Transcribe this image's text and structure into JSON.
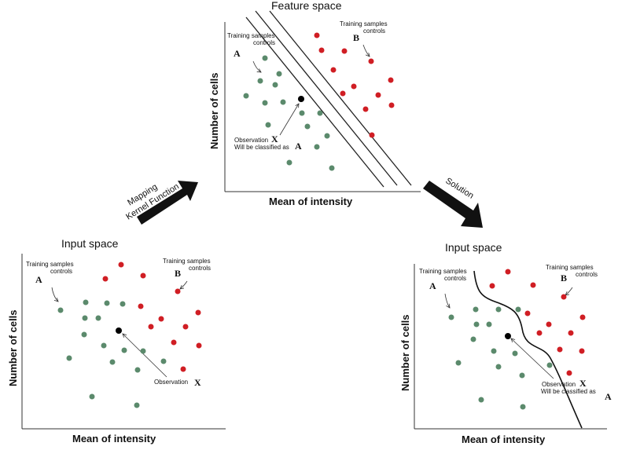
{
  "colors": {
    "green": "#5b8a6c",
    "red": "#d01e24",
    "black": "#000000",
    "axis": "#333333"
  },
  "feature_space": {
    "title": "Feature space",
    "xlabel": "Mean of intensity",
    "ylabel": "Number of cells",
    "label_a_line1": "Training samples",
    "label_a_line2": "controls",
    "letter_a": "A",
    "label_b_line1": "Training samples",
    "label_b_line2": "controls",
    "letter_b": "B",
    "obs_line1": "Observation",
    "obs_letter": "X",
    "obs_line2": "Will be classified as",
    "obs_class": "A"
  },
  "input_left": {
    "title": "Input space",
    "xlabel": "Mean of intensity",
    "ylabel": "Number of cells",
    "label_a_line1": "Training samples",
    "label_a_line2": "controls",
    "letter_a": "A",
    "label_b_line1": "Training samples",
    "label_b_line2": "controls",
    "letter_b": "B",
    "obs_line1": "Observation",
    "obs_letter": "X"
  },
  "input_right": {
    "title": "Input space",
    "xlabel": "Mean of intensity",
    "ylabel": "Number of cells",
    "label_a_line1": "Training samples",
    "label_a_line2": "controls",
    "letter_a": "A",
    "label_b_line1": "Training samples",
    "label_b_line2": "controls",
    "letter_b": "B",
    "obs_line1": "Observation",
    "obs_letter": "X",
    "obs_line2": "Will be classified as",
    "obs_class": "A"
  },
  "arrow_mapping": {
    "line1": "Mapping",
    "line2": "Kernel Function"
  },
  "arrow_solution": {
    "line1": "Solution"
  }
}
